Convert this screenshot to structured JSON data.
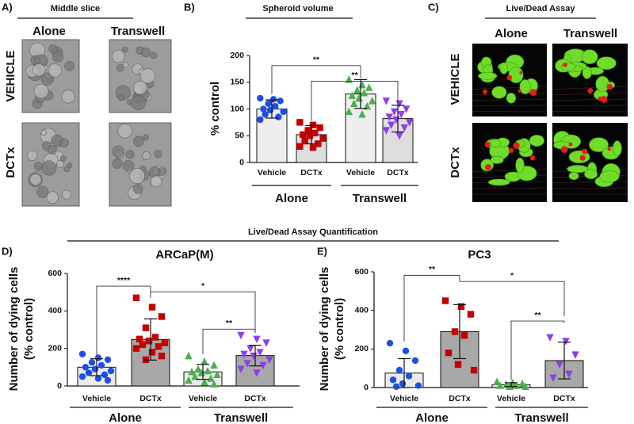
{
  "panel_labels": [
    "A)",
    "B)",
    "C)",
    "D)",
    "E)"
  ],
  "panel_a": {
    "title": "Middle slice",
    "columns": [
      "Alone",
      "Transwell"
    ],
    "rows": [
      "VEHICLE",
      "DCTx"
    ]
  },
  "panel_c": {
    "title": "Live/Dead Assay",
    "columns": [
      "Alone",
      "Transwell"
    ],
    "rows": [
      "VEHICLE",
      "DCTx"
    ]
  },
  "section_title": "Live/Dead Assay Quantification",
  "chart_data": [
    {
      "type": "bar",
      "title": "Spheroid volume",
      "ylabel": [
        "% control"
      ],
      "categories": [
        "Vehicle",
        "DCTx",
        "Vehicle",
        "DCTx"
      ],
      "groups": [
        "Alone",
        "Transwell"
      ],
      "values": [
        100,
        52,
        128,
        82
      ],
      "errors": [
        17,
        17,
        27,
        25
      ],
      "bar_colors": [
        "#eeeeee",
        "#dedede",
        "#eeeeee",
        "#dedede"
      ],
      "point_colors": [
        "#1f4fe0",
        "#c40000",
        "#4cae4c",
        "#8e3fe8"
      ],
      "point_markers": [
        "circle",
        "square",
        "triangle",
        "triangle-down"
      ],
      "points": [
        [
          120,
          118,
          115,
          110,
          105,
          100,
          98,
          95,
          90,
          85,
          80
        ],
        [
          75,
          70,
          65,
          60,
          55,
          52,
          50,
          45,
          40,
          35,
          30,
          28
        ],
        [
          155,
          145,
          140,
          135,
          130,
          125,
          120,
          115,
          110,
          105,
          95,
          90
        ],
        [
          115,
          110,
          100,
          95,
          90,
          85,
          80,
          75,
          70,
          65,
          60,
          50
        ]
      ],
      "ylim": [
        0,
        200
      ],
      "yticks": [
        0,
        50,
        100,
        150,
        200
      ],
      "annotations": [
        "**",
        "**"
      ]
    },
    {
      "type": "bar",
      "title": "ARCaP(M)",
      "ylabel": [
        "Number of dying cells",
        "(% control)"
      ],
      "categories": [
        "Vehicle",
        "DCTx",
        "Vehicle",
        "DCTx"
      ],
      "groups": [
        "Alone",
        "Transwell"
      ],
      "values": [
        100,
        248,
        75,
        162
      ],
      "errors": [
        45,
        110,
        40,
        55
      ],
      "bar_colors": [
        "#ebebeb",
        "#a8a8a8",
        "#ebebeb",
        "#a8a8a8"
      ],
      "point_colors": [
        "#1f4fe0",
        "#c40000",
        "#4cae4c",
        "#8e3fe8"
      ],
      "point_markers": [
        "circle",
        "square",
        "triangle",
        "triangle-down"
      ],
      "points": [
        [
          170,
          150,
          140,
          125,
          110,
          100,
          90,
          80,
          70,
          60,
          50,
          40,
          30
        ],
        [
          470,
          420,
          370,
          310,
          260,
          250,
          240,
          230,
          220,
          210,
          200,
          180,
          160,
          140
        ],
        [
          160,
          130,
          110,
          90,
          80,
          75,
          70,
          60,
          50,
          40,
          30,
          20,
          10
        ],
        [
          270,
          250,
          230,
          200,
          180,
          170,
          160,
          140,
          120,
          110,
          90,
          70
        ]
      ],
      "ylim": [
        0,
        600
      ],
      "yticks": [
        0,
        200,
        400,
        600
      ],
      "annotations": [
        "****",
        "*",
        "**"
      ]
    },
    {
      "type": "bar",
      "title": "PC3",
      "ylabel": [
        "Number of dying cells",
        "(% control)"
      ],
      "categories": [
        "Vehicle",
        "DCTx",
        "Vehicle",
        "DCTx"
      ],
      "groups": [
        "Alone",
        "Transwell"
      ],
      "values": [
        75,
        290,
        15,
        140
      ],
      "errors": [
        75,
        140,
        10,
        95
      ],
      "bar_colors": [
        "#ebebeb",
        "#a8a8a8",
        "#ebebeb",
        "#a8a8a8"
      ],
      "point_colors": [
        "#1f4fe0",
        "#c40000",
        "#4cae4c",
        "#8e3fe8"
      ],
      "point_markers": [
        "circle",
        "square",
        "triangle",
        "triangle-down"
      ],
      "points": [
        [
          230,
          190,
          140,
          90,
          60,
          40,
          20,
          10,
          5
        ],
        [
          450,
          420,
          380,
          290,
          270,
          180,
          120,
          90
        ],
        [
          30,
          25,
          20,
          15,
          10,
          10,
          5,
          5
        ],
        [
          260,
          240,
          170,
          120,
          70,
          50
        ]
      ],
      "ylim": [
        0,
        600
      ],
      "yticks": [
        0,
        200,
        400,
        600
      ],
      "annotations": [
        "**",
        "*",
        "**"
      ]
    }
  ]
}
